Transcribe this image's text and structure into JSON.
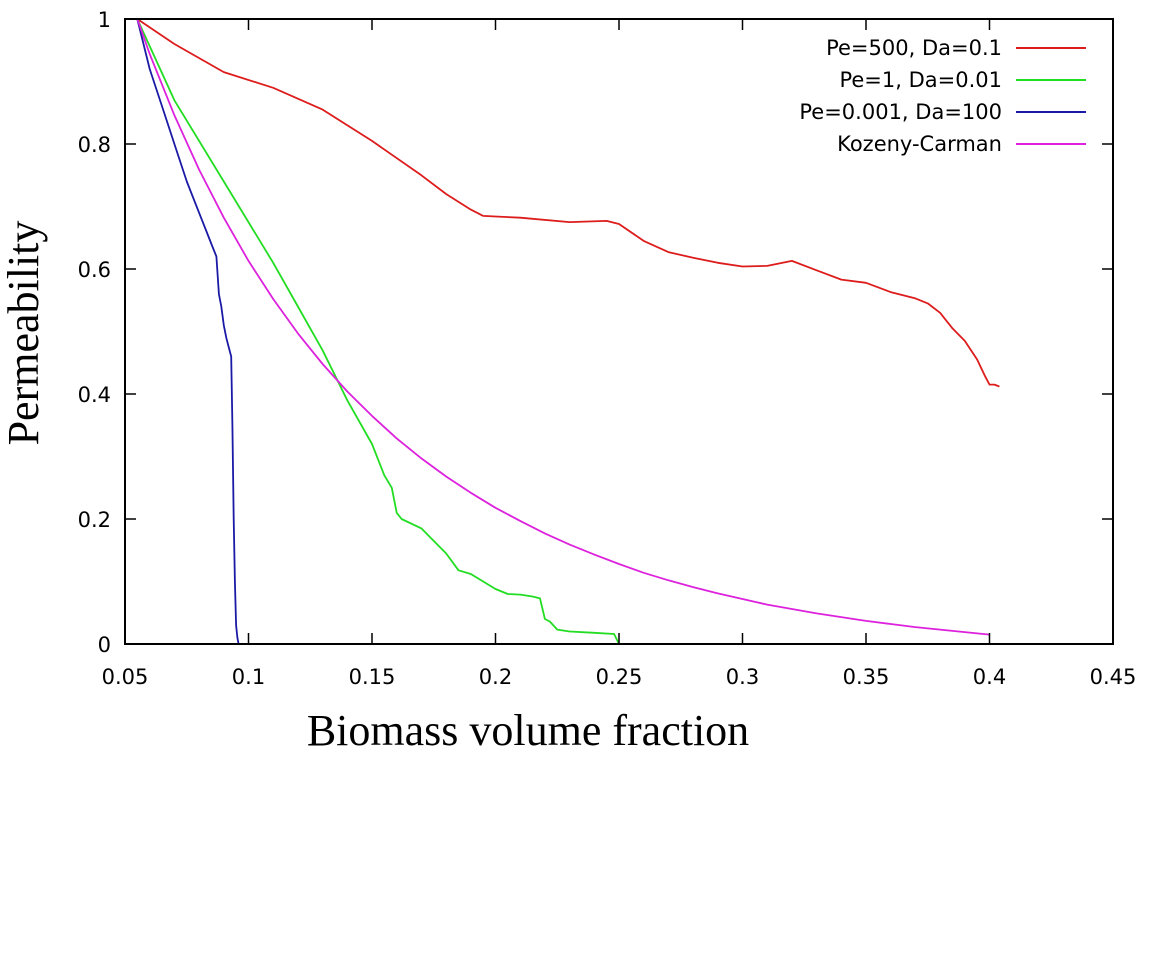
{
  "chart_data": {
    "type": "line",
    "title": "",
    "xlabel": "Biomass volume fraction",
    "ylabel": "Permeability",
    "xlim": [
      0.05,
      0.45
    ],
    "ylim": [
      0,
      1
    ],
    "xticks": [
      "0.05",
      "0.1",
      "0.15",
      "0.2",
      "0.25",
      "0.3",
      "0.35",
      "0.4",
      "0.45"
    ],
    "yticks": [
      "0",
      "0.2",
      "0.4",
      "0.6",
      "0.8",
      "1"
    ],
    "xtick_values": [
      0.05,
      0.1,
      0.15,
      0.2,
      0.25,
      0.3,
      0.35,
      0.4,
      0.45
    ],
    "ytick_values": [
      0,
      0.2,
      0.4,
      0.6,
      0.8,
      1
    ],
    "grid": false,
    "legend_position": "top-right",
    "series": [
      {
        "name": "Pe=500, Da=0.1",
        "color": "#dd1c1c",
        "x": [
          0.055,
          0.07,
          0.09,
          0.11,
          0.13,
          0.15,
          0.17,
          0.18,
          0.19,
          0.195,
          0.2,
          0.21,
          0.23,
          0.245,
          0.25,
          0.26,
          0.27,
          0.28,
          0.29,
          0.3,
          0.31,
          0.32,
          0.33,
          0.34,
          0.35,
          0.36,
          0.37,
          0.375,
          0.38,
          0.385,
          0.39,
          0.395,
          0.398,
          0.4,
          0.402,
          0.404
        ],
        "y": [
          1.0,
          0.96,
          0.915,
          0.89,
          0.855,
          0.805,
          0.75,
          0.72,
          0.695,
          0.685,
          0.684,
          0.682,
          0.675,
          0.677,
          0.672,
          0.645,
          0.627,
          0.618,
          0.61,
          0.604,
          0.605,
          0.613,
          0.598,
          0.583,
          0.578,
          0.563,
          0.553,
          0.545,
          0.53,
          0.505,
          0.485,
          0.455,
          0.43,
          0.415,
          0.415,
          0.412
        ]
      },
      {
        "name": "Pe=1, Da=0.01",
        "color": "#22dd22",
        "x": [
          0.055,
          0.07,
          0.09,
          0.11,
          0.12,
          0.13,
          0.14,
          0.15,
          0.155,
          0.158,
          0.16,
          0.162,
          0.17,
          0.175,
          0.18,
          0.185,
          0.19,
          0.195,
          0.2,
          0.205,
          0.21,
          0.215,
          0.218,
          0.22,
          0.222,
          0.225,
          0.23,
          0.24,
          0.248,
          0.25
        ],
        "y": [
          1.0,
          0.87,
          0.74,
          0.61,
          0.54,
          0.47,
          0.39,
          0.32,
          0.27,
          0.25,
          0.21,
          0.2,
          0.185,
          0.165,
          0.145,
          0.118,
          0.112,
          0.1,
          0.088,
          0.08,
          0.079,
          0.076,
          0.073,
          0.04,
          0.036,
          0.023,
          0.02,
          0.018,
          0.016,
          0.0
        ]
      },
      {
        "name": "Pe=0.001, Da=100",
        "color": "#1a1aa6",
        "x": [
          0.055,
          0.06,
          0.065,
          0.07,
          0.075,
          0.08,
          0.083,
          0.085,
          0.087,
          0.088,
          0.089,
          0.09,
          0.091,
          0.092,
          0.093,
          0.0935,
          0.094,
          0.0945,
          0.095,
          0.0955,
          0.096
        ],
        "y": [
          1.0,
          0.92,
          0.86,
          0.8,
          0.74,
          0.69,
          0.66,
          0.64,
          0.62,
          0.56,
          0.54,
          0.51,
          0.49,
          0.475,
          0.46,
          0.35,
          0.2,
          0.1,
          0.03,
          0.01,
          0.0
        ]
      },
      {
        "name": "Kozeny-Carman",
        "color": "#dd22dd",
        "x": [
          0.055,
          0.06,
          0.07,
          0.08,
          0.09,
          0.1,
          0.11,
          0.12,
          0.13,
          0.14,
          0.15,
          0.16,
          0.17,
          0.18,
          0.19,
          0.2,
          0.21,
          0.22,
          0.23,
          0.24,
          0.25,
          0.26,
          0.27,
          0.28,
          0.29,
          0.3,
          0.31,
          0.32,
          0.33,
          0.34,
          0.35,
          0.36,
          0.37,
          0.38,
          0.39,
          0.4
        ],
        "y": [
          1.0,
          0.944,
          0.846,
          0.759,
          0.682,
          0.613,
          0.552,
          0.497,
          0.448,
          0.404,
          0.365,
          0.329,
          0.297,
          0.268,
          0.242,
          0.218,
          0.197,
          0.177,
          0.159,
          0.143,
          0.128,
          0.114,
          0.102,
          0.091,
          0.081,
          0.072,
          0.063,
          0.056,
          0.049,
          0.043,
          0.037,
          0.032,
          0.027,
          0.023,
          0.019,
          0.015
        ]
      }
    ]
  }
}
